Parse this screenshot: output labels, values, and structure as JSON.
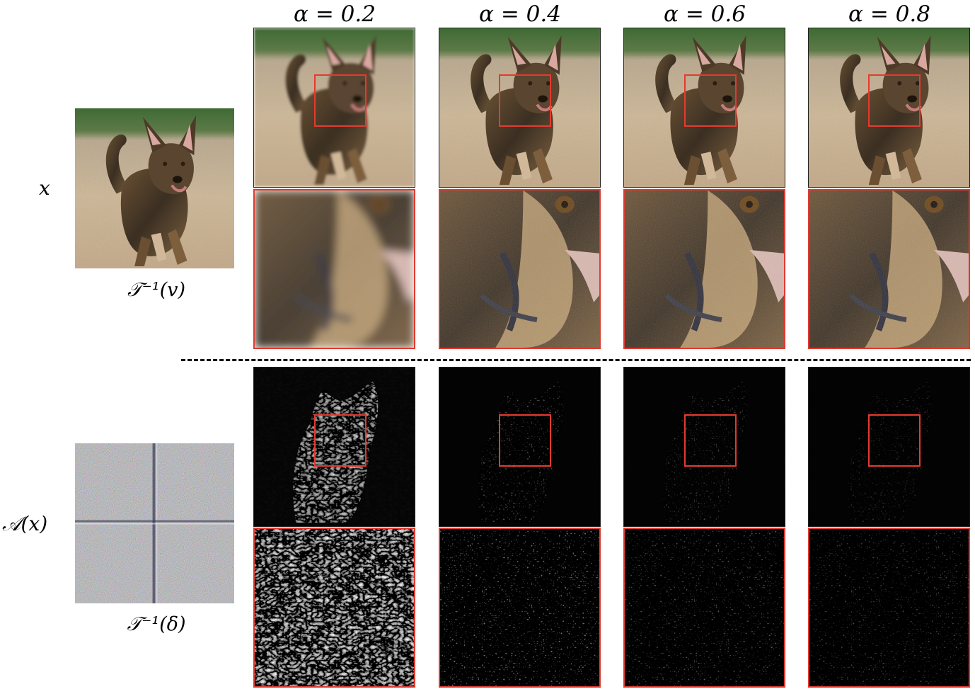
{
  "row_labels": {
    "top": "x",
    "bottom": "𝒜(x)"
  },
  "captions": {
    "top": "𝒯⁻¹(v)",
    "bottom": "𝒯⁻¹(δ)"
  },
  "alpha_columns": [
    {
      "label": "α = 0.2"
    },
    {
      "label": "α = 0.4"
    },
    {
      "label": "α = 0.6"
    },
    {
      "label": "α = 0.8"
    }
  ],
  "colors": {
    "highlight_box": "#e53a2f",
    "divider": "#111111"
  }
}
